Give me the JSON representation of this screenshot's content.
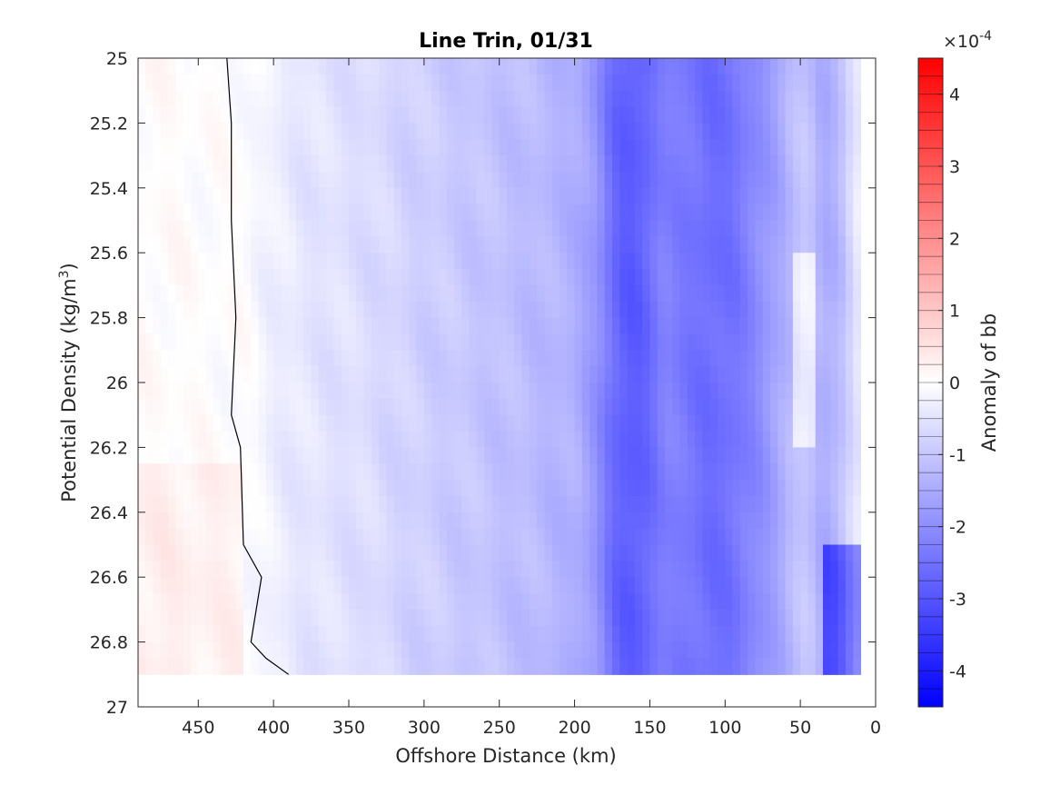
{
  "chart_data": {
    "type": "heatmap",
    "title": "Line Trin, 01/31",
    "xlabel": "Offshore Distance (km)",
    "ylabel_main": "Potential Density (kg/m",
    "ylabel_sup": "3",
    "ylabel_close": ")",
    "x_ticks": [
      450,
      400,
      350,
      300,
      250,
      200,
      150,
      100,
      50,
      0
    ],
    "y_ticks": [
      "25",
      "25.2",
      "25.4",
      "25.6",
      "25.8",
      "26",
      "26.2",
      "26.4",
      "26.6",
      "26.8",
      "27"
    ],
    "xlim": [
      490,
      0
    ],
    "ylim": [
      25,
      27
    ],
    "x_reversed": true,
    "y_reversed": true,
    "grid": false,
    "colorbar": {
      "label": "Anomaly of bb",
      "exponent_prefix": "×10",
      "exponent": "-4",
      "range": [
        -4.5,
        4.5
      ],
      "ticks": [
        "4",
        "3",
        "2",
        "1",
        "0",
        "-1",
        "-2",
        "-3",
        "-4"
      ],
      "tick_values": [
        4,
        3,
        2,
        1,
        0,
        -1,
        -2,
        -3,
        -4
      ],
      "colormap": "blue-white-red",
      "low_color": "#0000ff",
      "mid_color": "#ffffff",
      "high_color": "#ff0000"
    },
    "data_region": {
      "x_max": 490,
      "x_min": 10,
      "y_min": 25,
      "y_max": 26.9
    },
    "anomaly_columns_x": [
      490,
      470,
      440,
      420,
      400,
      380,
      340,
      310,
      270,
      230,
      200,
      185,
      175,
      165,
      155,
      140,
      125,
      110,
      95,
      80,
      65,
      55,
      45,
      35,
      25,
      15,
      10
    ],
    "anomaly_columns_val": [
      0.05,
      0.05,
      0.0,
      0.0,
      -0.3,
      -0.45,
      -0.6,
      -0.8,
      -1.0,
      -1.2,
      -1.4,
      -1.9,
      -2.6,
      -2.9,
      -2.8,
      -2.2,
      -2.4,
      -2.6,
      -2.5,
      -2.1,
      -1.6,
      -1.2,
      -1.0,
      -1.5,
      -1.3,
      -0.6,
      -0.3
    ],
    "zero_contour": [
      [
        431,
        25.0
      ],
      [
        428,
        25.2
      ],
      [
        428,
        25.5
      ],
      [
        425,
        25.8
      ],
      [
        428,
        26.1
      ],
      [
        422,
        26.2
      ],
      [
        420,
        26.5
      ],
      [
        408,
        26.6
      ],
      [
        415,
        26.8
      ],
      [
        405,
        26.85
      ],
      [
        390,
        26.9
      ]
    ]
  }
}
